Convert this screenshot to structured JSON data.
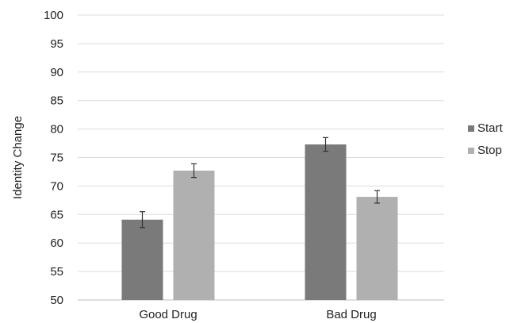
{
  "chart_data": {
    "type": "bar",
    "title": "",
    "xlabel": "",
    "ylabel": "Identity Change",
    "ylim": [
      50,
      100
    ],
    "yticks": [
      50,
      55,
      60,
      65,
      70,
      75,
      80,
      85,
      90,
      95,
      100
    ],
    "categories": [
      "Good Drug",
      "Bad Drug"
    ],
    "series": [
      {
        "name": "Start",
        "values": [
          64.1,
          77.3
        ],
        "errors": [
          1.4,
          1.2
        ],
        "color": "#7a7a7a"
      },
      {
        "name": "Stop",
        "values": [
          72.7,
          68.1
        ],
        "errors": [
          1.2,
          1.1
        ],
        "color": "#b0b0b0"
      }
    ],
    "grid": true,
    "legend_position": "right"
  }
}
